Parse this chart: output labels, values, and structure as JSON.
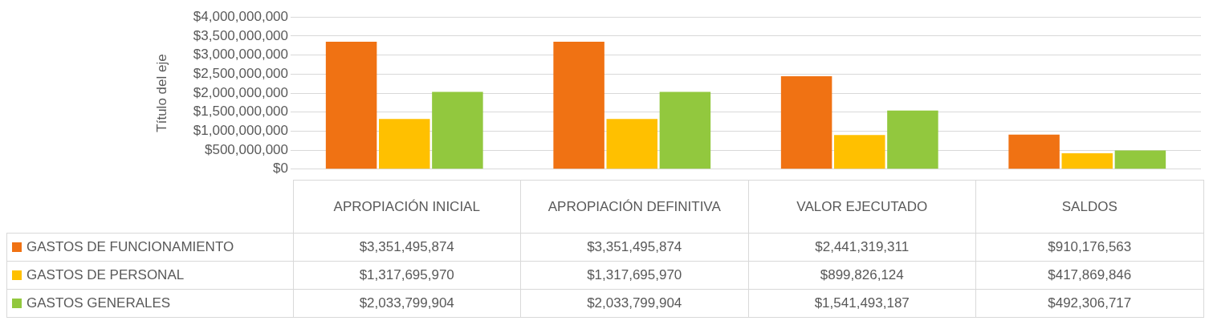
{
  "chart_data": {
    "type": "bar",
    "ylabel": "Título del eje",
    "categories": [
      "APROPIACIÓN INICIAL",
      "APROPIACIÓN DEFINITIVA",
      "VALOR EJECUTADO",
      "SALDOS"
    ],
    "series": [
      {
        "name": "GASTOS DE FUNCIONAMIENTO",
        "color": "#f07213",
        "values": [
          3351495874,
          3351495874,
          2441319311,
          910176563
        ],
        "value_labels": [
          "$3,351,495,874",
          "$3,351,495,874",
          "$2,441,319,311",
          "$910,176,563"
        ]
      },
      {
        "name": "GASTOS DE PERSONAL",
        "color": "#ffc000",
        "values": [
          1317695970,
          1317695970,
          899826124,
          417869846
        ],
        "value_labels": [
          "$1,317,695,970",
          "$1,317,695,970",
          "$899,826,124",
          "$417,869,846"
        ]
      },
      {
        "name": "GASTOS GENERALES",
        "color": "#92c83e",
        "values": [
          2033799904,
          2033799904,
          1541493187,
          492306717
        ],
        "value_labels": [
          "$2,033,799,904",
          "$2,033,799,904",
          "$1,541,493,187",
          "$492,306,717"
        ]
      }
    ],
    "ylim": [
      0,
      4000000000
    ],
    "yticks": [
      {
        "value": 0,
        "label": "$0"
      },
      {
        "value": 500000000,
        "label": "$500,000,000"
      },
      {
        "value": 1000000000,
        "label": "$1,000,000,000"
      },
      {
        "value": 1500000000,
        "label": "$1,500,000,000"
      },
      {
        "value": 2000000000,
        "label": "$2,000,000,000"
      },
      {
        "value": 2500000000,
        "label": "$2,500,000,000"
      },
      {
        "value": 3000000000,
        "label": "$3,000,000,000"
      },
      {
        "value": 3500000000,
        "label": "$3,500,000,000"
      },
      {
        "value": 4000000000,
        "label": "$4,000,000,000"
      }
    ],
    "grid": "y",
    "legend": "bottom"
  }
}
